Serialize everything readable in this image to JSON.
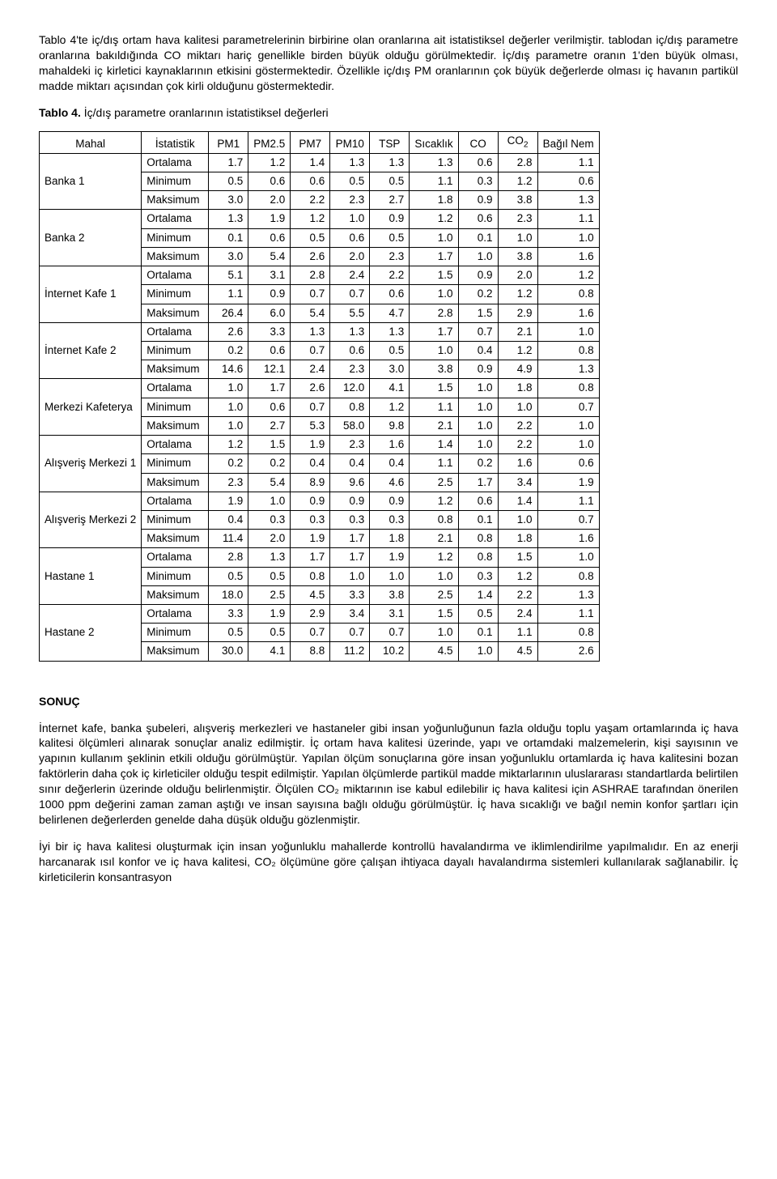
{
  "intro_paragraph": "Tablo 4'te iç/dış ortam hava kalitesi parametrelerinin birbirine olan oranlarına ait istatistiksel değerler verilmiştir. tablodan iç/dış parametre oranlarına bakıldığında CO miktarı hariç genellikle birden büyük olduğu görülmektedir. İç/dış parametre oranın 1'den büyük olması, mahaldeki iç kirletici kaynaklarının etkisini göstermektedir. Özellikle iç/dış PM oranlarının çok büyük değerlerde olması iç havanın partikül madde miktarı açısından çok kirli olduğunu göstermektedir.",
  "table_caption_label": "Tablo 4.",
  "table_caption_text": " İç/dış parametre oranlarının istatistiksel değerleri",
  "table": {
    "columns": [
      "Mahal",
      "İstatistik",
      "PM1",
      "PM2.5",
      "PM7",
      "PM10",
      "TSP",
      "Sıcaklık",
      "CO",
      "CO₂",
      "Bağıl Nem"
    ],
    "mahal_col_label": "Mahal",
    "stat_col_label": "İstatistik",
    "value_cols": [
      "PM1",
      "PM2.5",
      "PM7",
      "PM10",
      "TSP",
      "Sıcaklık",
      "CO",
      "CO",
      "Bağıl Nem"
    ],
    "co2_sub": "2",
    "groups": [
      {
        "mahal": "Banka 1",
        "rows": [
          {
            "stat": "Ortalama",
            "v": [
              "1.7",
              "1.2",
              "1.4",
              "1.3",
              "1.3",
              "1.3",
              "0.6",
              "2.8",
              "1.1"
            ]
          },
          {
            "stat": "Minimum",
            "v": [
              "0.5",
              "0.6",
              "0.6",
              "0.5",
              "0.5",
              "1.1",
              "0.3",
              "1.2",
              "0.6"
            ]
          },
          {
            "stat": "Maksimum",
            "v": [
              "3.0",
              "2.0",
              "2.2",
              "2.3",
              "2.7",
              "1.8",
              "0.9",
              "3.8",
              "1.3"
            ]
          }
        ]
      },
      {
        "mahal": "Banka 2",
        "rows": [
          {
            "stat": "Ortalama",
            "v": [
              "1.3",
              "1.9",
              "1.2",
              "1.0",
              "0.9",
              "1.2",
              "0.6",
              "2.3",
              "1.1"
            ]
          },
          {
            "stat": "Minimum",
            "v": [
              "0.1",
              "0.6",
              "0.5",
              "0.6",
              "0.5",
              "1.0",
              "0.1",
              "1.0",
              "1.0"
            ]
          },
          {
            "stat": "Maksimum",
            "v": [
              "3.0",
              "5.4",
              "2.6",
              "2.0",
              "2.3",
              "1.7",
              "1.0",
              "3.8",
              "1.6"
            ]
          }
        ]
      },
      {
        "mahal": "İnternet Kafe 1",
        "rows": [
          {
            "stat": "Ortalama",
            "v": [
              "5.1",
              "3.1",
              "2.8",
              "2.4",
              "2.2",
              "1.5",
              "0.9",
              "2.0",
              "1.2"
            ]
          },
          {
            "stat": "Minimum",
            "v": [
              "1.1",
              "0.9",
              "0.7",
              "0.7",
              "0.6",
              "1.0",
              "0.2",
              "1.2",
              "0.8"
            ]
          },
          {
            "stat": "Maksimum",
            "v": [
              "26.4",
              "6.0",
              "5.4",
              "5.5",
              "4.7",
              "2.8",
              "1.5",
              "2.9",
              "1.6"
            ]
          }
        ]
      },
      {
        "mahal": "İnternet Kafe 2",
        "rows": [
          {
            "stat": "Ortalama",
            "v": [
              "2.6",
              "3.3",
              "1.3",
              "1.3",
              "1.3",
              "1.7",
              "0.7",
              "2.1",
              "1.0"
            ]
          },
          {
            "stat": "Minimum",
            "v": [
              "0.2",
              "0.6",
              "0.7",
              "0.6",
              "0.5",
              "1.0",
              "0.4",
              "1.2",
              "0.8"
            ]
          },
          {
            "stat": "Maksimum",
            "v": [
              "14.6",
              "12.1",
              "2.4",
              "2.3",
              "3.0",
              "3.8",
              "0.9",
              "4.9",
              "1.3"
            ]
          }
        ]
      },
      {
        "mahal": "Merkezi Kafeterya",
        "rows": [
          {
            "stat": "Ortalama",
            "v": [
              "1.0",
              "1.7",
              "2.6",
              "12.0",
              "4.1",
              "1.5",
              "1.0",
              "1.8",
              "0.8"
            ]
          },
          {
            "stat": "Minimum",
            "v": [
              "1.0",
              "0.6",
              "0.7",
              "0.8",
              "1.2",
              "1.1",
              "1.0",
              "1.0",
              "0.7"
            ]
          },
          {
            "stat": "Maksimum",
            "v": [
              "1.0",
              "2.7",
              "5.3",
              "58.0",
              "9.8",
              "2.1",
              "1.0",
              "2.2",
              "1.0"
            ]
          }
        ]
      },
      {
        "mahal": "Alışveriş Merkezi 1",
        "rows": [
          {
            "stat": "Ortalama",
            "v": [
              "1.2",
              "1.5",
              "1.9",
              "2.3",
              "1.6",
              "1.4",
              "1.0",
              "2.2",
              "1.0"
            ]
          },
          {
            "stat": "Minimum",
            "v": [
              "0.2",
              "0.2",
              "0.4",
              "0.4",
              "0.4",
              "1.1",
              "0.2",
              "1.6",
              "0.6"
            ]
          },
          {
            "stat": "Maksimum",
            "v": [
              "2.3",
              "5.4",
              "8.9",
              "9.6",
              "4.6",
              "2.5",
              "1.7",
              "3.4",
              "1.9"
            ]
          }
        ]
      },
      {
        "mahal": "Alışveriş Merkezi 2",
        "rows": [
          {
            "stat": "Ortalama",
            "v": [
              "1.9",
              "1.0",
              "0.9",
              "0.9",
              "0.9",
              "1.2",
              "0.6",
              "1.4",
              "1.1"
            ]
          },
          {
            "stat": "Minimum",
            "v": [
              "0.4",
              "0.3",
              "0.3",
              "0.3",
              "0.3",
              "0.8",
              "0.1",
              "1.0",
              "0.7"
            ]
          },
          {
            "stat": "Maksimum",
            "v": [
              "11.4",
              "2.0",
              "1.9",
              "1.7",
              "1.8",
              "2.1",
              "0.8",
              "1.8",
              "1.6"
            ]
          }
        ]
      },
      {
        "mahal": "Hastane 1",
        "rows": [
          {
            "stat": "Ortalama",
            "v": [
              "2.8",
              "1.3",
              "1.7",
              "1.7",
              "1.9",
              "1.2",
              "0.8",
              "1.5",
              "1.0"
            ]
          },
          {
            "stat": "Minimum",
            "v": [
              "0.5",
              "0.5",
              "0.8",
              "1.0",
              "1.0",
              "1.0",
              "0.3",
              "1.2",
              "0.8"
            ]
          },
          {
            "stat": "Maksimum",
            "v": [
              "18.0",
              "2.5",
              "4.5",
              "3.3",
              "3.8",
              "2.5",
              "1.4",
              "2.2",
              "1.3"
            ]
          }
        ]
      },
      {
        "mahal": "Hastane 2",
        "rows": [
          {
            "stat": "Ortalama",
            "v": [
              "3.3",
              "1.9",
              "2.9",
              "3.4",
              "3.1",
              "1.5",
              "0.5",
              "2.4",
              "1.1"
            ]
          },
          {
            "stat": "Minimum",
            "v": [
              "0.5",
              "0.5",
              "0.7",
              "0.7",
              "0.7",
              "1.0",
              "0.1",
              "1.1",
              "0.8"
            ]
          },
          {
            "stat": "Maksimum",
            "v": [
              "30.0",
              "4.1",
              "8.8",
              "11.2",
              "10.2",
              "4.5",
              "1.0",
              "4.5",
              "2.6"
            ]
          }
        ]
      }
    ]
  },
  "sonuc_title": "SONUÇ",
  "sonuc_p1": "İnternet kafe, banka şubeleri, alışveriş merkezleri ve hastaneler gibi insan yoğunluğunun fazla olduğu toplu yaşam ortamlarında iç hava kalitesi ölçümleri alınarak sonuçlar analiz edilmiştir. İç ortam hava kalitesi üzerinde, yapı ve ortamdaki malzemelerin, kişi sayısının ve yapının kullanım şeklinin etkili olduğu görülmüştür. Yapılan ölçüm sonuçlarına göre insan yoğunluklu ortamlarda iç hava kalitesini bozan faktörlerin daha çok iç kirleticiler olduğu tespit edilmiştir. Yapılan ölçümlerde partikül madde miktarlarının uluslararası standartlarda belirtilen sınır değerlerin üzerinde olduğu belirlenmiştir. Ölçülen CO₂ miktarının ise kabul edilebilir iç hava kalitesi için ASHRAE tarafından önerilen 1000 ppm değerini zaman zaman aştığı ve insan sayısına bağlı olduğu görülmüştür. İç hava sıcaklığı ve bağıl nemin konfor şartları için belirlenen değerlerden genelde daha düşük olduğu gözlenmiştir.",
  "sonuc_p2": "İyi bir iç hava kalitesi oluşturmak için insan yoğunluklu mahallerde kontrollü havalandırma ve iklimlendirilme yapılmalıdır. En az enerji harcanarak ısıl konfor ve iç hava kalitesi, CO₂ ölçümüne göre çalışan ihtiyaca dayalı havalandırma sistemleri kullanılarak sağlanabilir. İç kirleticilerin konsantrasyon"
}
